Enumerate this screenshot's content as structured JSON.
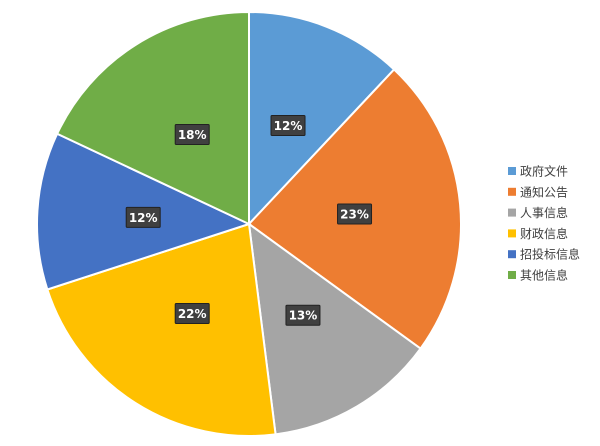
{
  "chart_data": {
    "type": "pie",
    "categories": [
      "政府文件",
      "通知公告",
      "人事信息",
      "财政信息",
      "招投标信息",
      "其他信息"
    ],
    "values": [
      12,
      23,
      13,
      22,
      12,
      18
    ],
    "value_labels": [
      "12%",
      "23%",
      "13%",
      "22%",
      "12%",
      "18%"
    ],
    "colors": [
      "#5b9bd5",
      "#ed7d31",
      "#a5a5a5",
      "#ffc000",
      "#4472c4",
      "#70ad47"
    ],
    "legend": "right"
  }
}
